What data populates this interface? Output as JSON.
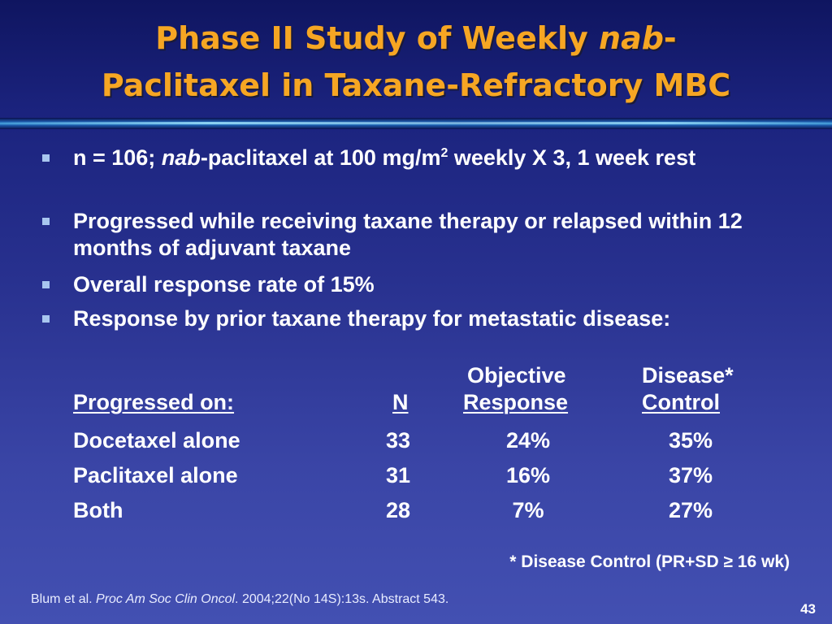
{
  "slide": {
    "title_line1_a": "Phase II Study of Weekly ",
    "title_line1_em": "nab",
    "title_line1_b": "-",
    "title_line2": "Paclitaxel in Taxane-Refractory MBC",
    "bullets": [
      {
        "a": "n = 106; ",
        "em": "nab",
        "b": "-paclitaxel at 100 mg/m",
        "sup": "2",
        "c": " weekly X 3, 1 week rest"
      },
      {
        "text": "Progressed while receiving taxane therapy or relapsed within 12 months of adjuvant taxane"
      },
      {
        "text": "Overall response rate of 15%"
      },
      {
        "text": "Response by prior taxane therapy for metastatic disease:"
      }
    ],
    "table": {
      "headers": {
        "progressed_on": "Progressed on:",
        "n": "N",
        "objective_line1": "Objective",
        "objective_line2": "Response",
        "disease_line1": "Disease*",
        "disease_line2": "Control"
      },
      "rows": [
        {
          "label": "Docetaxel alone",
          "n": "33",
          "objective": "24%",
          "disease": "35%"
        },
        {
          "label": "Paclitaxel alone",
          "n": "31",
          "objective": "16%",
          "disease": "37%"
        },
        {
          "label": "Both",
          "n": "28",
          "objective": "7%",
          "disease": "27%"
        }
      ]
    },
    "footnote": "* Disease Control (PR+SD ≥ 16 wk)",
    "citation": {
      "a": "Blum et al. ",
      "em": "Proc Am Soc Clin Oncol",
      "b": ". 2004;22(No 14S):13s. Abstract 543."
    },
    "page_number": "43",
    "colors": {
      "title": "#f6a623",
      "bullet_marker": "#a8c6ef",
      "background_top": "#0f1560",
      "background_bottom": "#4350b2"
    }
  }
}
